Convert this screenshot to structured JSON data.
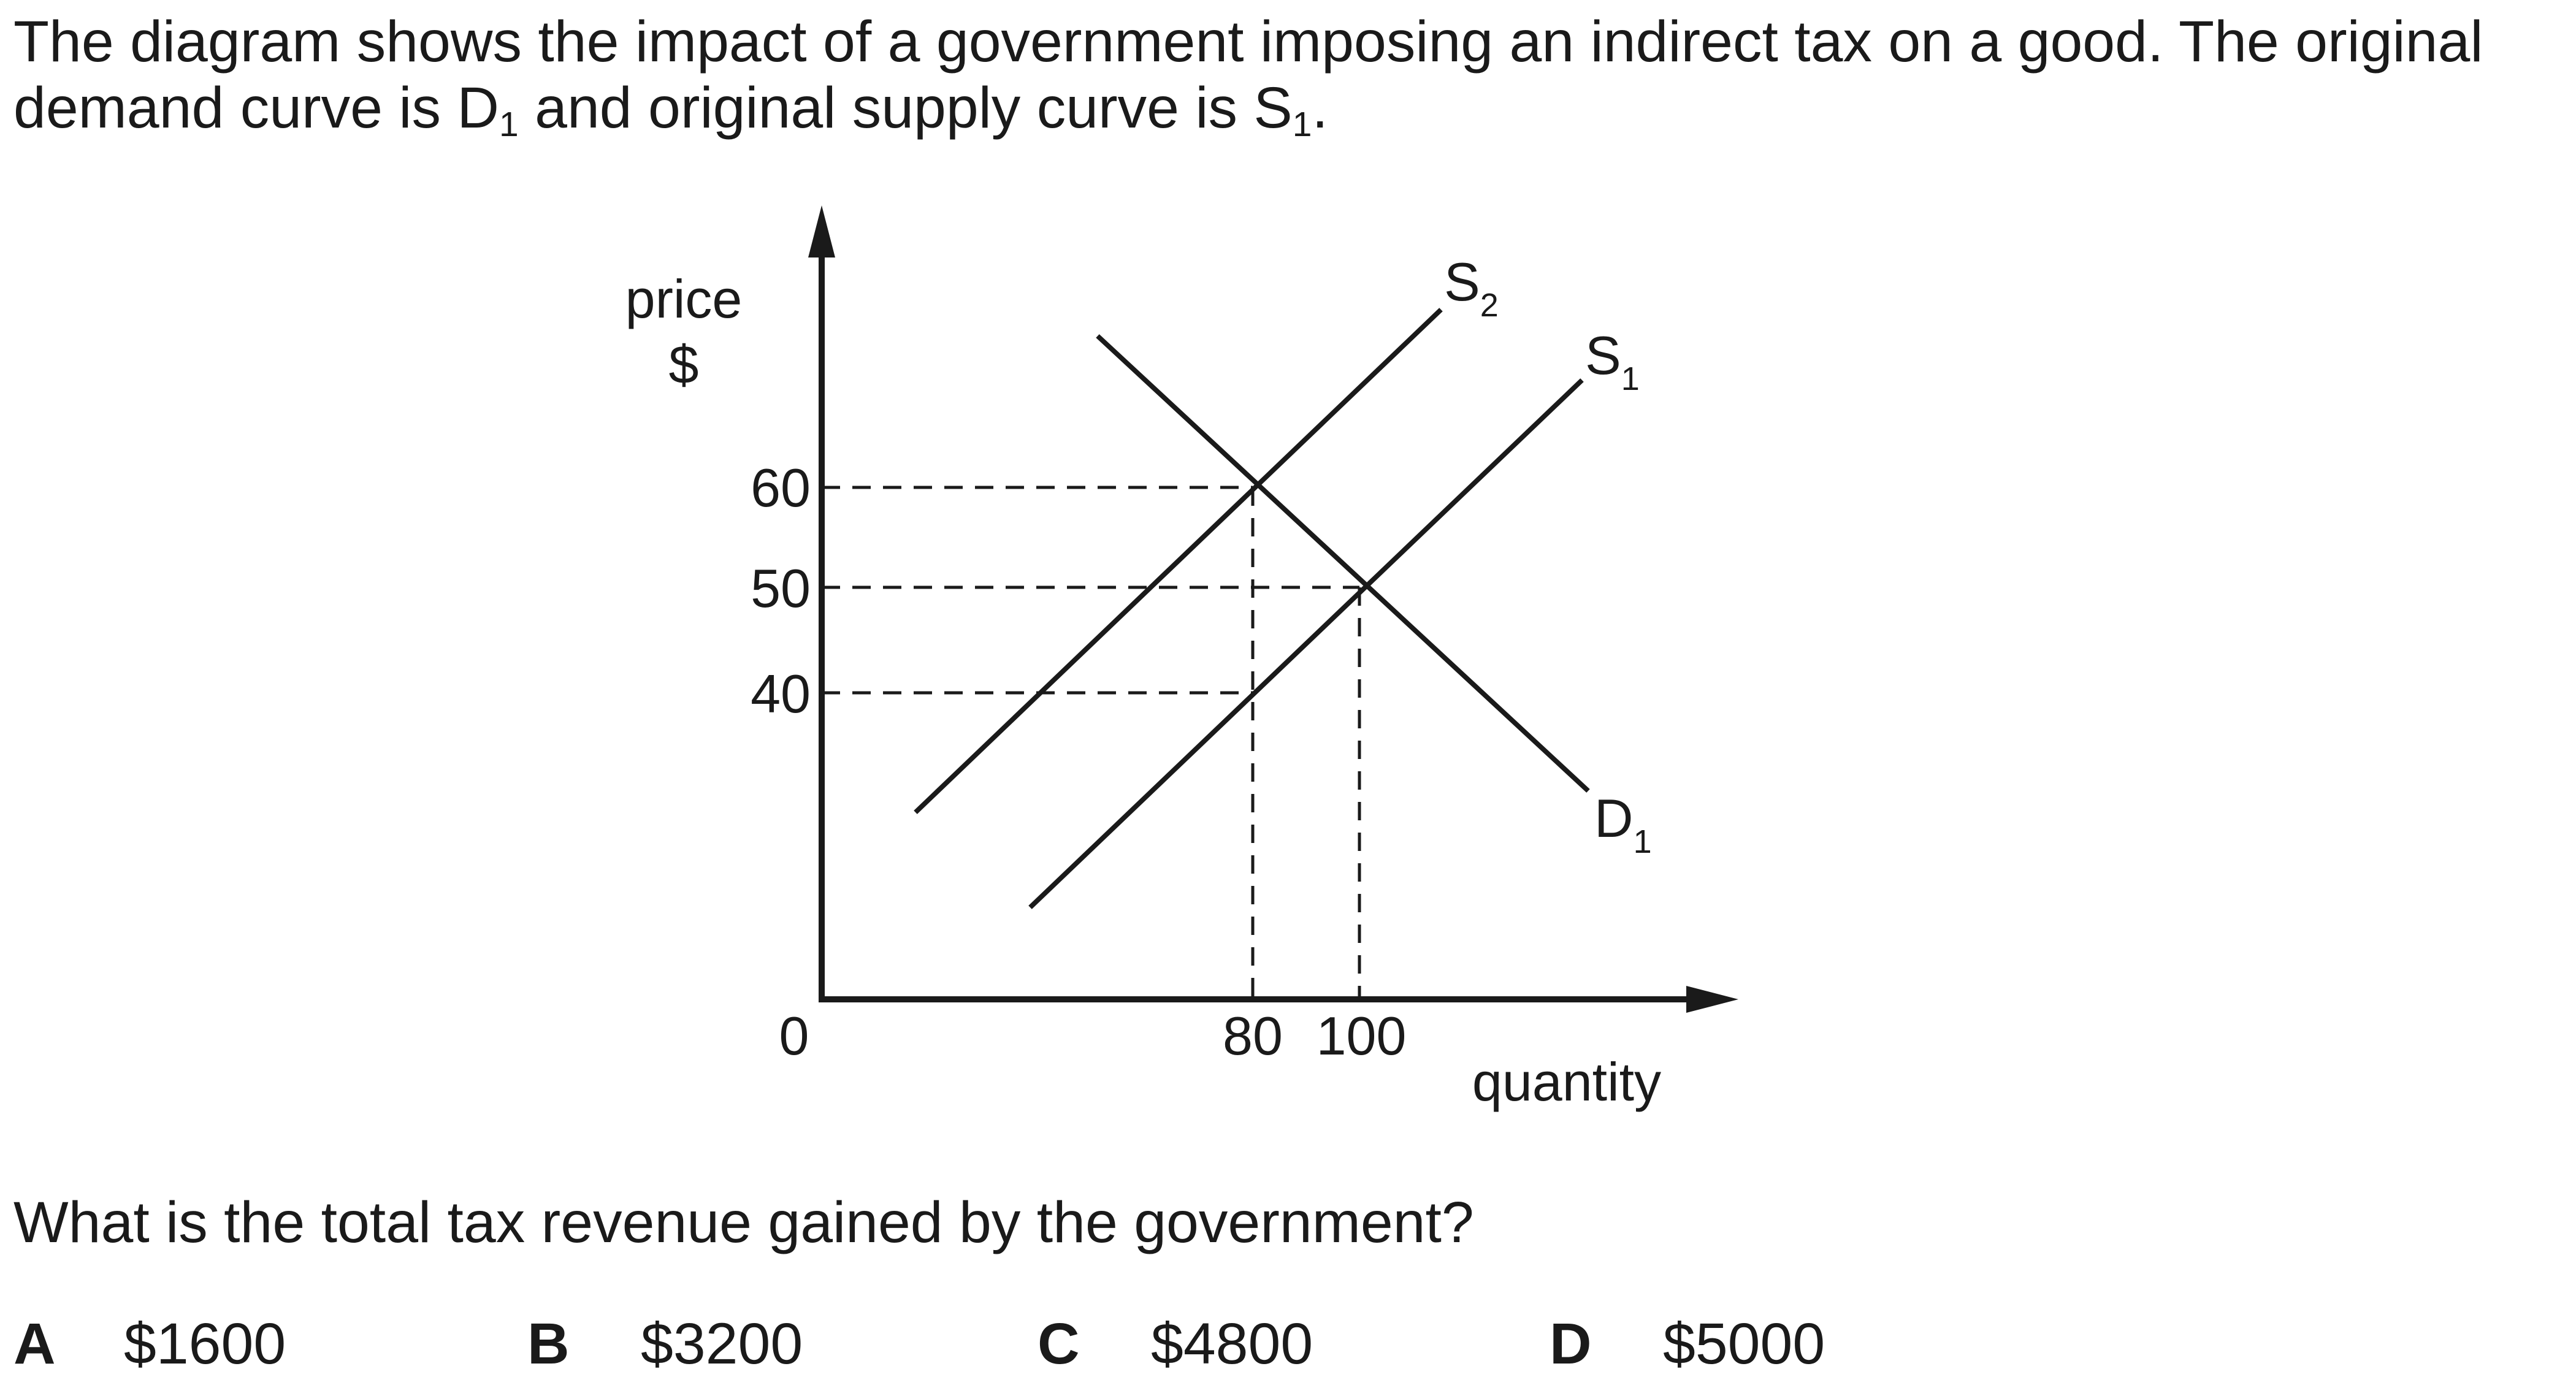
{
  "intro": {
    "part1": "The diagram shows the impact of a government imposing an indirect tax on a good. The original demand curve is D",
    "sub1": "1",
    "part2": " and original supply curve is S",
    "sub2": "1",
    "part3": "."
  },
  "diagram": {
    "y_axis_label_line1": "price",
    "y_axis_label_line2": "$",
    "x_axis_label": "quantity",
    "origin_label": "0",
    "y_ticks": [
      "60",
      "50",
      "40"
    ],
    "x_ticks": [
      "80",
      "100"
    ],
    "curves": {
      "s2": {
        "letter": "S",
        "sub": "2"
      },
      "s1": {
        "letter": "S",
        "sub": "1"
      },
      "d1": {
        "letter": "D",
        "sub": "1"
      }
    }
  },
  "question": "What is the total tax revenue gained by the government?",
  "options": [
    {
      "letter": "A",
      "value": "$1600"
    },
    {
      "letter": "B",
      "value": "$3200"
    },
    {
      "letter": "C",
      "value": "$4800"
    },
    {
      "letter": "D",
      "value": "$5000"
    }
  ]
}
